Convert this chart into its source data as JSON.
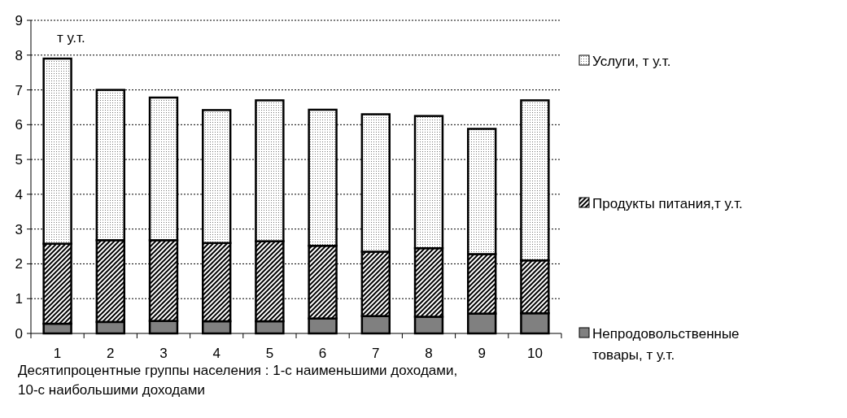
{
  "chart_data": {
    "type": "bar",
    "stacked": true,
    "categories": [
      "1",
      "2",
      "3",
      "4",
      "5",
      "6",
      "7",
      "8",
      "9",
      "10"
    ],
    "series": [
      {
        "name": "Непродовольственные товары, т у.т.",
        "color": "#808080",
        "values": [
          0.28,
          0.33,
          0.36,
          0.35,
          0.35,
          0.43,
          0.5,
          0.48,
          0.57,
          0.58
        ]
      },
      {
        "name": "Продукты питания,т у.т.",
        "color": "#000000",
        "values": [
          2.3,
          2.35,
          2.32,
          2.25,
          2.3,
          2.09,
          1.85,
          1.97,
          1.71,
          1.52
        ]
      },
      {
        "name": "Услуги, т у.т.",
        "color": "#000000",
        "values": [
          5.32,
          4.32,
          4.1,
          3.82,
          4.05,
          3.91,
          3.95,
          3.8,
          3.6,
          4.6
        ]
      }
    ],
    "ylim": [
      0,
      9
    ],
    "yticks": [
      0,
      1,
      2,
      3,
      4,
      5,
      6,
      7,
      8,
      9
    ],
    "grid": "y",
    "legend": "right",
    "xlabel": "Десятипроцентные группы населения : 1-с наименьшими доходами, 10-с наибольшими доходами",
    "annotations": [
      "т у.т."
    ]
  }
}
